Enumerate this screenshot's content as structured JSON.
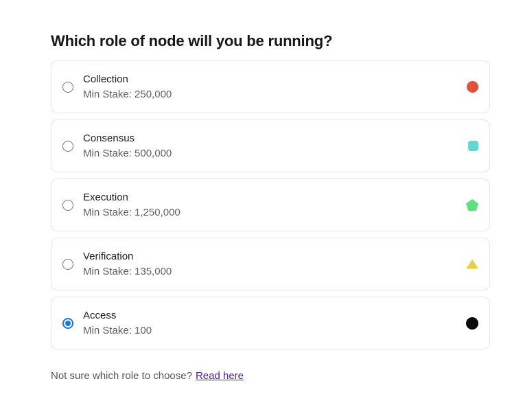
{
  "page": {
    "title": "Which role of node will you be running?"
  },
  "roles": [
    {
      "name": "Collection",
      "min_stake": "Min Stake: 250,000",
      "icon": "circle",
      "color": "#e0523c",
      "selected": false
    },
    {
      "name": "Consensus",
      "min_stake": "Min Stake: 500,000",
      "icon": "rounded-square",
      "color": "#62d8d3",
      "selected": false
    },
    {
      "name": "Execution",
      "min_stake": "Min Stake: 1,250,000",
      "icon": "pentagon",
      "color": "#5ddf7d",
      "selected": false
    },
    {
      "name": "Verification",
      "min_stake": "Min Stake: 135,000",
      "icon": "triangle",
      "color": "#e6cf4b",
      "selected": false
    },
    {
      "name": "Access",
      "min_stake": "Min Stake: 100",
      "icon": "circle",
      "color": "#0a0a0a",
      "selected": true
    }
  ],
  "footer": {
    "question": "Not sure which role to choose?",
    "link_label": "Read here"
  },
  "colors": {
    "radio_selected": "#1a73e8",
    "link": "#4b1f8e",
    "card_border": "#e4e4e4"
  }
}
